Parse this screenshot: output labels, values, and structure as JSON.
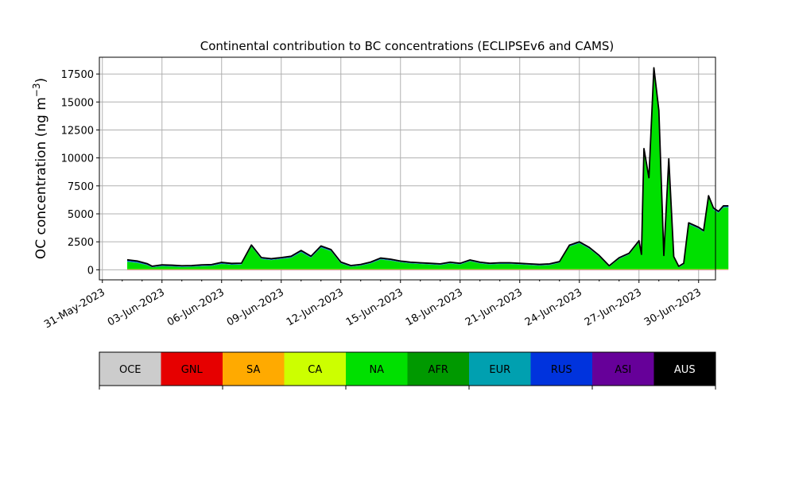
{
  "chart_data": {
    "type": "area",
    "title": "Continental contribution to BC concentrations (ECLIPSEv6 and CAMS)",
    "xlabel": "",
    "ylabel": "OC concentration (ng m",
    "ylabel_sup": "−3",
    "ylabel_close": ")",
    "ylim": [
      -900,
      19000
    ],
    "yticks": [
      0,
      2500,
      5000,
      7500,
      10000,
      12500,
      15000,
      17500
    ],
    "ytick_labels": [
      "0",
      "2500",
      "5000",
      "7500",
      "10000",
      "12500",
      "15000",
      "17500"
    ],
    "xlim_days": [
      -0.15,
      30.85
    ],
    "xtick_labels": [
      "31-May-2023",
      "03-Jun-2023",
      "06-Jun-2023",
      "09-Jun-2023",
      "12-Jun-2023",
      "15-Jun-2023",
      "18-Jun-2023",
      "21-Jun-2023",
      "24-Jun-2023",
      "27-Jun-2023",
      "30-Jun-2023"
    ],
    "grid": true,
    "x": [
      "2023-06-01T06",
      "2023-06-01T18",
      "2023-06-02T06",
      "2023-06-02T12",
      "2023-06-03T00",
      "2023-06-03T12",
      "2023-06-04T00",
      "2023-06-04T12",
      "2023-06-05T00",
      "2023-06-05T12",
      "2023-06-06T00",
      "2023-06-06T12",
      "2023-06-07T00",
      "2023-06-07T12",
      "2023-06-08T00",
      "2023-06-08T12",
      "2023-06-08T18",
      "2023-06-09T00",
      "2023-06-09T12",
      "2023-06-10T00",
      "2023-06-10T12",
      "2023-06-11T00",
      "2023-06-11T12",
      "2023-06-12T00",
      "2023-06-12T12",
      "2023-06-13T00",
      "2023-06-13T12",
      "2023-06-14T00",
      "2023-06-14T12",
      "2023-06-15T00",
      "2023-06-15T12",
      "2023-06-16T00",
      "2023-06-16T12",
      "2023-06-17T00",
      "2023-06-17T12",
      "2023-06-18T00",
      "2023-06-18T12",
      "2023-06-19T00",
      "2023-06-19T12",
      "2023-06-20T00",
      "2023-06-20T12",
      "2023-06-21T00",
      "2023-06-21T12",
      "2023-06-22T00",
      "2023-06-22T12",
      "2023-06-23T00",
      "2023-06-23T12",
      "2023-06-24T00",
      "2023-06-24T12",
      "2023-06-25T00",
      "2023-06-25T12",
      "2023-06-26T00",
      "2023-06-26T12",
      "2023-06-27T00",
      "2023-06-27T03",
      "2023-06-27T06",
      "2023-06-27T12",
      "2023-06-27T18",
      "2023-06-28T00",
      "2023-06-28T06",
      "2023-06-28T12",
      "2023-06-28T18",
      "2023-06-29T00",
      "2023-06-29T06",
      "2023-06-29T12",
      "2023-06-30T00",
      "2023-06-30T06",
      "2023-06-30T12",
      "2023-06-30T18",
      "2023-07-01T00",
      "2023-07-01T06",
      "2023-07-01T12"
    ],
    "series": [
      {
        "name": "OCE",
        "color": "#cccccc",
        "values": [
          10,
          10,
          10,
          10,
          10,
          10,
          10,
          10,
          10,
          10,
          10,
          10,
          10,
          10,
          10,
          10,
          10,
          10,
          10,
          10,
          10,
          10,
          10,
          10,
          10,
          10,
          10,
          10,
          10,
          10,
          10,
          10,
          10,
          10,
          10,
          10,
          10,
          10,
          10,
          10,
          10,
          10,
          10,
          10,
          10,
          10,
          10,
          10,
          10,
          10,
          10,
          10,
          10,
          10,
          10,
          10,
          10,
          10,
          10,
          10,
          10,
          10,
          10,
          10,
          10,
          10,
          10,
          10,
          10,
          10,
          10,
          10
        ]
      },
      {
        "name": "GNL",
        "color": "#e60000",
        "values": [
          10,
          10,
          10,
          10,
          10,
          10,
          10,
          10,
          10,
          10,
          10,
          10,
          10,
          10,
          10,
          10,
          10,
          10,
          10,
          10,
          10,
          10,
          10,
          10,
          10,
          10,
          10,
          10,
          10,
          10,
          10,
          10,
          10,
          10,
          10,
          10,
          10,
          10,
          10,
          10,
          10,
          10,
          10,
          10,
          10,
          10,
          10,
          10,
          10,
          10,
          10,
          10,
          10,
          10,
          10,
          10,
          10,
          10,
          10,
          10,
          10,
          10,
          10,
          10,
          10,
          10,
          10,
          10,
          10,
          10,
          10,
          10
        ]
      },
      {
        "name": "SA",
        "color": "#ffaa00",
        "values": [
          20,
          20,
          20,
          20,
          20,
          20,
          20,
          20,
          20,
          20,
          20,
          20,
          20,
          20,
          20,
          20,
          20,
          20,
          20,
          20,
          20,
          20,
          20,
          20,
          20,
          20,
          20,
          20,
          20,
          20,
          20,
          20,
          20,
          20,
          20,
          20,
          20,
          20,
          20,
          20,
          20,
          20,
          20,
          20,
          20,
          20,
          20,
          20,
          20,
          20,
          20,
          20,
          20,
          20,
          20,
          20,
          20,
          20,
          20,
          20,
          20,
          20,
          20,
          20,
          20,
          20,
          20,
          20,
          20,
          20,
          20,
          20
        ]
      },
      {
        "name": "CA",
        "color": "#ccff00",
        "values": [
          20,
          20,
          20,
          20,
          20,
          20,
          20,
          20,
          20,
          20,
          20,
          20,
          20,
          20,
          20,
          20,
          20,
          20,
          20,
          20,
          20,
          20,
          20,
          20,
          20,
          20,
          20,
          20,
          20,
          20,
          20,
          20,
          20,
          20,
          20,
          20,
          20,
          20,
          20,
          20,
          20,
          20,
          20,
          20,
          20,
          20,
          20,
          20,
          20,
          20,
          20,
          20,
          20,
          20,
          20,
          20,
          20,
          20,
          20,
          20,
          20,
          20,
          20,
          20,
          20,
          20,
          20,
          20,
          20,
          20,
          20,
          20
        ]
      },
      {
        "name": "NA",
        "color": "#00e000",
        "values": [
          650,
          550,
          350,
          150,
          250,
          220,
          180,
          200,
          250,
          280,
          450,
          380,
          400,
          2000,
          900,
          800,
          850,
          900,
          1000,
          1500,
          1000,
          1900,
          1600,
          500,
          200,
          300,
          500,
          850,
          750,
          600,
          500,
          450,
          400,
          350,
          500,
          400,
          700,
          500,
          400,
          450,
          450,
          400,
          350,
          300,
          350,
          550,
          2000,
          2300,
          1800,
          1100,
          200,
          900,
          1300,
          2400,
          1200,
          10600,
          8000,
          17800,
          14000,
          1100,
          9700,
          1000,
          150,
          400,
          4000,
          3600,
          3300,
          6400,
          5300,
          5000,
          5500,
          5500
        ]
      },
      {
        "name": "AFR",
        "color": "#009900",
        "values": [
          10,
          10,
          10,
          10,
          10,
          10,
          10,
          10,
          10,
          10,
          10,
          10,
          10,
          10,
          10,
          10,
          10,
          10,
          10,
          10,
          10,
          10,
          10,
          10,
          10,
          10,
          10,
          10,
          10,
          10,
          10,
          10,
          10,
          10,
          10,
          10,
          10,
          10,
          10,
          10,
          10,
          10,
          10,
          10,
          10,
          10,
          10,
          10,
          10,
          10,
          10,
          10,
          10,
          10,
          10,
          10,
          10,
          10,
          10,
          10,
          10,
          10,
          10,
          10,
          10,
          10,
          10,
          10,
          10,
          10,
          10,
          10
        ]
      },
      {
        "name": "EUR",
        "color": "#00a0b0",
        "values": [
          60,
          60,
          40,
          30,
          40,
          40,
          40,
          40,
          40,
          40,
          50,
          40,
          40,
          50,
          40,
          40,
          40,
          40,
          50,
          60,
          50,
          60,
          50,
          40,
          40,
          40,
          40,
          50,
          50,
          40,
          40,
          40,
          40,
          40,
          40,
          40,
          40,
          40,
          40,
          40,
          40,
          40,
          40,
          40,
          40,
          40,
          50,
          50,
          50,
          40,
          30,
          40,
          40,
          50,
          40,
          60,
          60,
          80,
          70,
          40,
          60,
          40,
          30,
          40,
          50,
          50,
          50,
          60,
          60,
          60,
          60,
          60
        ]
      },
      {
        "name": "RUS",
        "color": "#0033dd",
        "values": [
          100,
          100,
          80,
          60,
          70,
          70,
          60,
          60,
          70,
          70,
          80,
          70,
          70,
          80,
          70,
          70,
          70,
          70,
          80,
          90,
          80,
          90,
          80,
          70,
          60,
          60,
          70,
          70,
          70,
          60,
          60,
          60,
          60,
          60,
          60,
          60,
          60,
          60,
          60,
          60,
          60,
          60,
          60,
          60,
          60,
          60,
          70,
          70,
          70,
          60,
          50,
          60,
          60,
          70,
          60,
          90,
          90,
          100,
          100,
          60,
          80,
          60,
          50,
          60,
          70,
          70,
          70,
          80,
          80,
          80,
          80,
          80
        ]
      },
      {
        "name": "ASI",
        "color": "#660099",
        "values": [
          10,
          10,
          10,
          10,
          10,
          10,
          10,
          10,
          10,
          10,
          10,
          10,
          10,
          10,
          10,
          10,
          10,
          10,
          10,
          10,
          10,
          10,
          10,
          10,
          10,
          10,
          10,
          10,
          10,
          10,
          10,
          10,
          10,
          10,
          10,
          10,
          10,
          10,
          10,
          10,
          10,
          10,
          10,
          10,
          10,
          10,
          10,
          10,
          10,
          10,
          10,
          10,
          10,
          10,
          10,
          10,
          10,
          10,
          10,
          10,
          10,
          10,
          10,
          10,
          10,
          10,
          10,
          10,
          10,
          10,
          10,
          10
        ]
      },
      {
        "name": "AUS",
        "color": "#000000",
        "values": [
          0,
          0,
          0,
          0,
          0,
          0,
          0,
          0,
          0,
          0,
          0,
          0,
          0,
          0,
          0,
          0,
          0,
          0,
          0,
          0,
          0,
          0,
          0,
          0,
          0,
          0,
          0,
          0,
          0,
          0,
          0,
          0,
          0,
          0,
          0,
          0,
          0,
          0,
          0,
          0,
          0,
          0,
          0,
          0,
          0,
          0,
          0,
          0,
          0,
          0,
          0,
          0,
          0,
          0,
          0,
          0,
          0,
          0,
          0,
          0,
          0,
          0,
          0,
          0,
          0,
          0,
          0,
          0,
          0,
          0,
          0,
          0
        ]
      }
    ],
    "legend": {
      "placement": "bottom",
      "entries": [
        "OCE",
        "GNL",
        "SA",
        "CA",
        "NA",
        "AFR",
        "EUR",
        "RUS",
        "ASI",
        "AUS"
      ],
      "colors": [
        "#cccccc",
        "#e60000",
        "#ffaa00",
        "#ccff00",
        "#00e000",
        "#009900",
        "#00a0b0",
        "#0033dd",
        "#660099",
        "#000000"
      ],
      "label_colors": [
        "#000000",
        "#000000",
        "#000000",
        "#000000",
        "#000000",
        "#000000",
        "#000000",
        "#000000",
        "#000000",
        "#ffffff"
      ]
    }
  }
}
